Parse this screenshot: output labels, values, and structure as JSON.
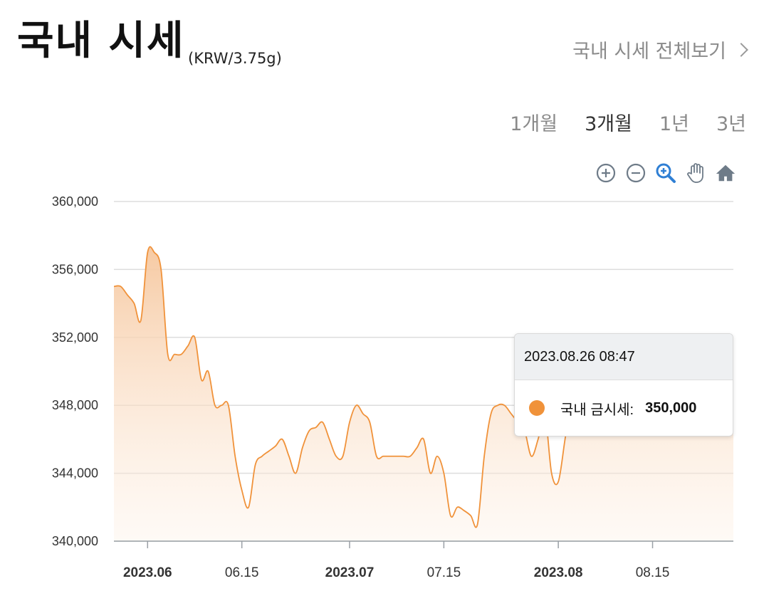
{
  "header": {
    "title": "국내 시세",
    "unit": "(KRW/3.75g)",
    "more_link": "국내 시세 전체보기"
  },
  "periods": [
    {
      "label": "1개월",
      "active": false
    },
    {
      "label": "3개월",
      "active": true
    },
    {
      "label": "1년",
      "active": false
    },
    {
      "label": "3년",
      "active": false
    }
  ],
  "toolbar": [
    "zoom-in-icon",
    "zoom-out-icon",
    "magnify-icon",
    "pan-hand-icon",
    "home-icon"
  ],
  "colors": {
    "series": "#f0923a",
    "area_top": "#f6c79e",
    "grid": "#dddddd",
    "toolbar_icon": "#6e7b88",
    "toolbar_active": "#2f7fd4"
  },
  "tooltip": {
    "date": "2023.08.26 08:47",
    "series_label": "국내 금시세:",
    "value": "350,000"
  },
  "chart_data": {
    "type": "area",
    "title": "",
    "xlabel": "",
    "ylabel": "",
    "ylim": [
      340000,
      360000
    ],
    "xlim": [
      "2023-05-27",
      "2023-08-27"
    ],
    "y_ticks": [
      "340,000",
      "344,000",
      "348,000",
      "352,000",
      "356,000",
      "360,000"
    ],
    "x_ticks": [
      {
        "date": "2023-06-01",
        "label": "2023.06",
        "major": true
      },
      {
        "date": "2023-06-15",
        "label": "06.15",
        "major": false
      },
      {
        "date": "2023-07-01",
        "label": "2023.07",
        "major": true
      },
      {
        "date": "2023-07-15",
        "label": "07.15",
        "major": false
      },
      {
        "date": "2023-08-01",
        "label": "2023.08",
        "major": true
      },
      {
        "date": "2023-08-15",
        "label": "08.15",
        "major": false
      }
    ],
    "grid": true,
    "series": [
      {
        "name": "국내 금시세",
        "points": [
          [
            "2023-05-27",
            355000
          ],
          [
            "2023-05-28",
            355000
          ],
          [
            "2023-05-29",
            354500
          ],
          [
            "2023-05-30",
            354000
          ],
          [
            "2023-05-31",
            353000
          ],
          [
            "2023-06-01",
            357000
          ],
          [
            "2023-06-02",
            357000
          ],
          [
            "2023-06-03",
            356000
          ],
          [
            "2023-06-04",
            351000
          ],
          [
            "2023-06-05",
            351000
          ],
          [
            "2023-06-06",
            351000
          ],
          [
            "2023-06-07",
            351500
          ],
          [
            "2023-06-08",
            352000
          ],
          [
            "2023-06-09",
            349500
          ],
          [
            "2023-06-10",
            350000
          ],
          [
            "2023-06-11",
            348000
          ],
          [
            "2023-06-12",
            348000
          ],
          [
            "2023-06-13",
            348000
          ],
          [
            "2023-06-14",
            345000
          ],
          [
            "2023-06-15",
            343000
          ],
          [
            "2023-06-16",
            342000
          ],
          [
            "2023-06-17",
            344500
          ],
          [
            "2023-06-18",
            345000
          ],
          [
            "2023-06-19",
            345300
          ],
          [
            "2023-06-20",
            345600
          ],
          [
            "2023-06-21",
            346000
          ],
          [
            "2023-06-22",
            345000
          ],
          [
            "2023-06-23",
            344000
          ],
          [
            "2023-06-24",
            345500
          ],
          [
            "2023-06-25",
            346500
          ],
          [
            "2023-06-26",
            346700
          ],
          [
            "2023-06-27",
            347000
          ],
          [
            "2023-06-28",
            346000
          ],
          [
            "2023-06-29",
            345000
          ],
          [
            "2023-06-30",
            345000
          ],
          [
            "2023-07-01",
            347000
          ],
          [
            "2023-07-02",
            348000
          ],
          [
            "2023-07-03",
            347500
          ],
          [
            "2023-07-04",
            347000
          ],
          [
            "2023-07-05",
            345000
          ],
          [
            "2023-07-06",
            345000
          ],
          [
            "2023-07-07",
            345000
          ],
          [
            "2023-07-08",
            345000
          ],
          [
            "2023-07-09",
            345000
          ],
          [
            "2023-07-10",
            345000
          ],
          [
            "2023-07-11",
            345500
          ],
          [
            "2023-07-12",
            346000
          ],
          [
            "2023-07-13",
            344000
          ],
          [
            "2023-07-14",
            345000
          ],
          [
            "2023-07-15",
            344000
          ],
          [
            "2023-07-16",
            341500
          ],
          [
            "2023-07-17",
            342000
          ],
          [
            "2023-07-18",
            341800
          ],
          [
            "2023-07-19",
            341500
          ],
          [
            "2023-07-20",
            341000
          ],
          [
            "2023-07-21",
            345000
          ],
          [
            "2023-07-22",
            347500
          ],
          [
            "2023-07-23",
            348000
          ],
          [
            "2023-07-24",
            348000
          ],
          [
            "2023-07-25",
            347500
          ],
          [
            "2023-07-26",
            347000
          ],
          [
            "2023-07-27",
            346500
          ],
          [
            "2023-07-28",
            345000
          ],
          [
            "2023-07-29",
            346000
          ],
          [
            "2023-07-30",
            347500
          ],
          [
            "2023-07-31",
            344000
          ],
          [
            "2023-08-01",
            343500
          ],
          [
            "2023-08-02",
            346000
          ],
          [
            "2023-08-03",
            348500
          ],
          [
            "2023-08-04",
            349000
          ],
          [
            "2023-08-05",
            349500
          ],
          [
            "2023-08-06",
            349000
          ],
          [
            "2023-08-07",
            349500
          ],
          [
            "2023-08-08",
            350000
          ],
          [
            "2023-08-09",
            350000
          ],
          [
            "2023-08-10",
            349500
          ],
          [
            "2023-08-11",
            349500
          ],
          [
            "2023-08-12",
            349000
          ],
          [
            "2023-08-13",
            349500
          ],
          [
            "2023-08-14",
            350000
          ],
          [
            "2023-08-15",
            350000
          ],
          [
            "2023-08-16",
            349500
          ],
          [
            "2023-08-17",
            349500
          ],
          [
            "2023-08-18",
            350000
          ],
          [
            "2023-08-19",
            350000
          ],
          [
            "2023-08-20",
            349500
          ],
          [
            "2023-08-21",
            349500
          ],
          [
            "2023-08-22",
            350000
          ],
          [
            "2023-08-23",
            349500
          ],
          [
            "2023-08-24",
            350000
          ],
          [
            "2023-08-25",
            350000
          ],
          [
            "2023-08-26",
            350000
          ],
          [
            "2023-08-27",
            350000
          ]
        ]
      }
    ]
  }
}
